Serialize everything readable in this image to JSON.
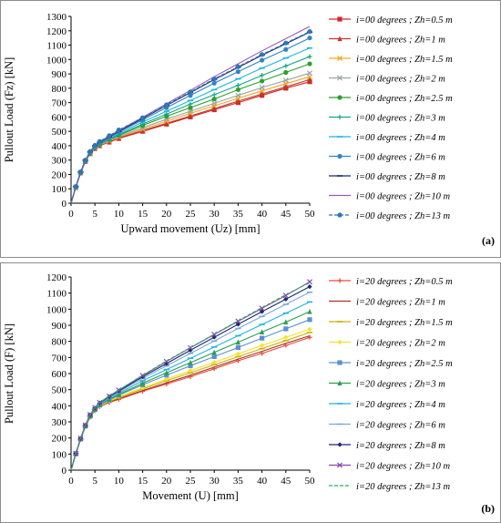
{
  "chart_data": [
    {
      "type": "line",
      "panel_label": "(a)",
      "xlabel": "Upward movement (Uz) [mm]",
      "ylabel": "Pullout  Load (Fz) [kN]",
      "xlim": [
        0,
        50
      ],
      "ylim": [
        0,
        1300
      ],
      "xticks": [
        0,
        5,
        10,
        15,
        20,
        25,
        30,
        35,
        40,
        45,
        50
      ],
      "yticks": [
        0,
        100,
        200,
        300,
        400,
        500,
        600,
        700,
        800,
        900,
        1000,
        1100,
        1200,
        1300
      ],
      "grid": false,
      "legend_position": "right",
      "x": [
        0,
        1,
        2,
        3,
        4,
        5,
        6,
        8,
        10,
        15,
        20,
        25,
        30,
        35,
        40,
        45,
        50
      ],
      "series": [
        {
          "name": "i=00 degrees ; Zh=0.5 m",
          "color": "#d62728",
          "marker": "square",
          "dash": false,
          "values": [
            0,
            110,
            210,
            290,
            345,
            380,
            400,
            425,
            450,
            500,
            550,
            600,
            650,
            700,
            750,
            800,
            845
          ]
        },
        {
          "name": "i=00 degrees ; Zh=1 m",
          "color": "#c0392b",
          "marker": "triangle",
          "dash": false,
          "values": [
            0,
            110,
            210,
            290,
            345,
            382,
            402,
            428,
            455,
            505,
            556,
            607,
            658,
            710,
            760,
            810,
            860
          ]
        },
        {
          "name": "i=00 degrees ; Zh=1.5 m",
          "color": "#f5a623",
          "marker": "x",
          "dash": false,
          "values": [
            0,
            112,
            212,
            292,
            348,
            385,
            405,
            432,
            460,
            515,
            570,
            625,
            678,
            730,
            782,
            832,
            880
          ]
        },
        {
          "name": "i=00 degrees ; Zh=2 m",
          "color": "#9aa5a8",
          "marker": "x",
          "dash": false,
          "values": [
            0,
            112,
            212,
            292,
            348,
            387,
            408,
            436,
            465,
            525,
            585,
            640,
            695,
            750,
            805,
            855,
            905
          ]
        },
        {
          "name": "i=00 degrees ; Zh=2.5 m",
          "color": "#2ca02c",
          "marker": "circle",
          "dash": false,
          "values": [
            0,
            113,
            214,
            294,
            350,
            390,
            412,
            442,
            472,
            540,
            605,
            665,
            725,
            790,
            850,
            910,
            970
          ]
        },
        {
          "name": "i=00 degrees ; Zh=3 m",
          "color": "#17a589",
          "marker": "plus",
          "dash": false,
          "values": [
            0,
            113,
            214,
            295,
            352,
            392,
            415,
            446,
            478,
            550,
            620,
            690,
            755,
            820,
            890,
            955,
            1020
          ]
        },
        {
          "name": "i=00 degrees ; Zh=4 m",
          "color": "#1fb5e0",
          "marker": "dash",
          "dash": false,
          "values": [
            0,
            114,
            215,
            296,
            354,
            395,
            418,
            452,
            486,
            565,
            640,
            715,
            790,
            865,
            940,
            1010,
            1080
          ]
        },
        {
          "name": "i=00 degrees ; Zh=6 m",
          "color": "#2e86c1",
          "marker": "circle",
          "dash": false,
          "values": [
            0,
            115,
            216,
            298,
            356,
            398,
            422,
            458,
            495,
            580,
            665,
            750,
            835,
            915,
            995,
            1070,
            1150
          ]
        },
        {
          "name": "i=00 degrees ; Zh=8 m",
          "color": "#1b2a6b",
          "marker": "dash",
          "dash": false,
          "values": [
            0,
            115,
            217,
            299,
            358,
            400,
            425,
            462,
            500,
            590,
            680,
            770,
            860,
            945,
            1030,
            1110,
            1190
          ]
        },
        {
          "name": "i=00 degrees ; Zh=10 m",
          "color": "#9b59b6",
          "marker": "none",
          "dash": false,
          "values": [
            0,
            116,
            218,
            300,
            360,
            402,
            428,
            466,
            505,
            598,
            692,
            785,
            880,
            970,
            1060,
            1145,
            1230
          ]
        },
        {
          "name": "i=00 degrees ; Zh=13 m",
          "color": "#2e75b6",
          "marker": "circle",
          "dash": true,
          "values": [
            0,
            116,
            218,
            300,
            360,
            403,
            430,
            470,
            510,
            595,
            685,
            775,
            865,
            950,
            1035,
            1115,
            1195
          ]
        }
      ]
    },
    {
      "type": "line",
      "panel_label": "(b)",
      "xlabel": "Movement (U) [mm]",
      "ylabel": "Pullout  Load (F) [kN]",
      "xlim": [
        0,
        50
      ],
      "ylim": [
        0,
        1200
      ],
      "xticks": [
        0,
        5,
        10,
        15,
        20,
        25,
        30,
        35,
        40,
        45,
        50
      ],
      "yticks": [
        0,
        100,
        200,
        300,
        400,
        500,
        600,
        700,
        800,
        900,
        1000,
        1100,
        1200
      ],
      "grid": false,
      "legend_position": "right",
      "x": [
        0,
        1,
        2,
        3,
        4,
        5,
        6,
        8,
        10,
        15,
        20,
        25,
        30,
        35,
        40,
        45,
        50
      ],
      "series": [
        {
          "name": "i=20 degrees ; Zh=0.5 m",
          "color": "#e74c3c",
          "marker": "plus",
          "dash": false,
          "values": [
            0,
            100,
            190,
            270,
            330,
            370,
            395,
            420,
            440,
            490,
            535,
            580,
            630,
            680,
            725,
            775,
            825
          ]
        },
        {
          "name": "i=20 degrees ; Zh=1 m",
          "color": "#a93226",
          "marker": "none",
          "dash": false,
          "values": [
            0,
            100,
            190,
            270,
            330,
            370,
            395,
            422,
            444,
            495,
            542,
            590,
            640,
            690,
            738,
            788,
            835
          ]
        },
        {
          "name": "i=20 degrees ; Zh=1.5 m",
          "color": "#c8b400",
          "marker": "dash",
          "dash": false,
          "values": [
            0,
            101,
            192,
            272,
            332,
            372,
            398,
            426,
            450,
            505,
            555,
            605,
            655,
            705,
            755,
            805,
            855
          ]
        },
        {
          "name": "i=20 degrees ; Zh=2 m",
          "color": "#f4e22a",
          "marker": "diamond",
          "dash": false,
          "values": [
            0,
            101,
            192,
            272,
            333,
            374,
            400,
            430,
            456,
            512,
            565,
            618,
            670,
            722,
            775,
            825,
            875
          ]
        },
        {
          "name": "i=20 degrees ; Zh=2.5 m",
          "color": "#5b8fd6",
          "marker": "square",
          "dash": false,
          "values": [
            0,
            102,
            194,
            274,
            335,
            376,
            404,
            436,
            465,
            530,
            590,
            648,
            705,
            762,
            820,
            878,
            935
          ]
        },
        {
          "name": "i=20 degrees ; Zh=3 m",
          "color": "#2e9e4f",
          "marker": "triangle",
          "dash": false,
          "values": [
            0,
            102,
            194,
            275,
            337,
            378,
            407,
            440,
            470,
            540,
            605,
            668,
            732,
            795,
            858,
            920,
            985
          ]
        },
        {
          "name": "i=20 degrees ; Zh=4 m",
          "color": "#1fb5e0",
          "marker": "dash",
          "dash": false,
          "values": [
            0,
            103,
            195,
            276,
            339,
            381,
            410,
            446,
            478,
            555,
            625,
            695,
            765,
            835,
            905,
            975,
            1045
          ]
        },
        {
          "name": "i=20 degrees ; Zh=6 m",
          "color": "#7fa7d9",
          "marker": "dash",
          "dash": false,
          "values": [
            0,
            103,
            196,
            278,
            341,
            384,
            414,
            452,
            486,
            570,
            648,
            725,
            802,
            880,
            955,
            1030,
            1105
          ]
        },
        {
          "name": "i=20 degrees ; Zh=8 m",
          "color": "#1b2a6b",
          "marker": "diamond",
          "dash": false,
          "values": [
            0,
            104,
            197,
            279,
            343,
            386,
            417,
            456,
            492,
            580,
            662,
            745,
            826,
            906,
            985,
            1062,
            1140
          ]
        },
        {
          "name": "i=20 degrees ; Zh=10 m",
          "color": "#8e44ad",
          "marker": "x",
          "dash": false,
          "values": [
            0,
            104,
            198,
            280,
            345,
            388,
            420,
            460,
            497,
            588,
            675,
            760,
            843,
            925,
            1005,
            1085,
            1170
          ]
        },
        {
          "name": "i=20 degrees ; Zh=13 m",
          "color": "#27ae60",
          "marker": "none",
          "dash": true,
          "values": [
            0,
            104,
            198,
            280,
            345,
            388,
            420,
            460,
            498,
            590,
            678,
            762,
            845,
            928,
            1010,
            1090,
            1165
          ]
        }
      ]
    }
  ]
}
